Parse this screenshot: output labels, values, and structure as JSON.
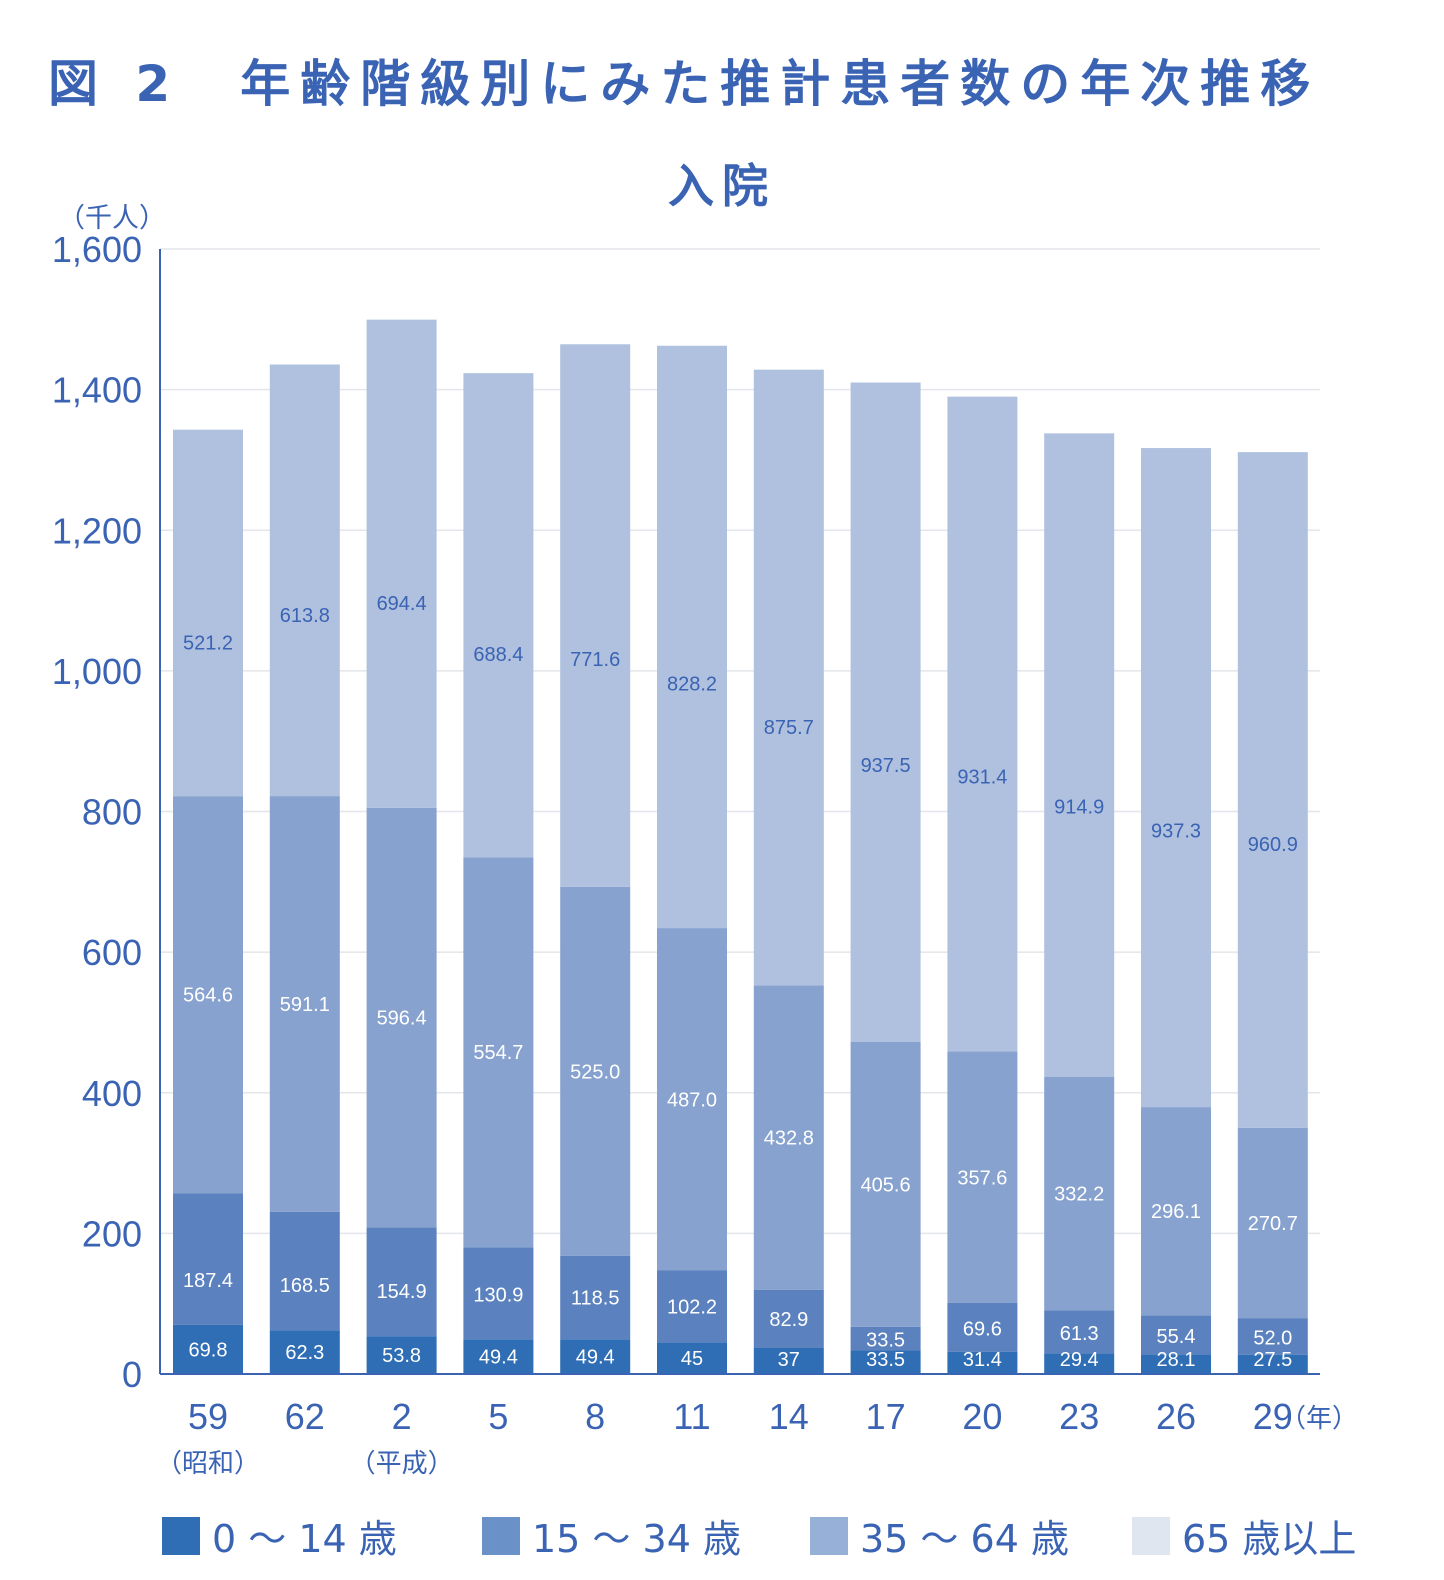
{
  "header": {
    "figure_number": "図 2",
    "title": "年齢階級別にみた推計患者数の年次推移",
    "subtitle": "入院"
  },
  "chart_data": {
    "type": "bar",
    "stacked": true,
    "title": "年齢階級別にみた推計患者数の年次推移",
    "subtitle": "入院",
    "ylabel": "（千人）",
    "xlabel": "（年）",
    "ylim": [
      0,
      1600
    ],
    "yticks": [
      0,
      200,
      400,
      600,
      800,
      1000,
      1200,
      1400,
      1600
    ],
    "ytick_labels": [
      "0",
      "200",
      "400",
      "600",
      "800",
      "1,000",
      "1,200",
      "1,400",
      "1,600"
    ],
    "categories": [
      "59",
      "62",
      "2",
      "5",
      "8",
      "11",
      "14",
      "17",
      "20",
      "23",
      "26",
      "29"
    ],
    "era_labels": [
      {
        "category_index": 0,
        "label": "（昭和）"
      },
      {
        "category_index": 2,
        "label": "（平成）"
      }
    ],
    "grid": true,
    "legend_position": "bottom",
    "series": [
      {
        "name": "0 ～ 14 歳",
        "color": "#2f6db5",
        "values": [
          69.8,
          62.3,
          53.8,
          49.4,
          49.4,
          45,
          37,
          33.5,
          31.4,
          29.4,
          28.1,
          27.5
        ],
        "labels": [
          "69.8",
          "62.3",
          "53.8",
          "49.4",
          "49.4",
          "45",
          "37",
          "33.5",
          "31.4",
          "29.4",
          "28.1",
          "27.5"
        ]
      },
      {
        "name": "15 ～ 34 歳",
        "color": "#5b82bf",
        "values": [
          187.4,
          168.5,
          154.9,
          130.9,
          118.5,
          102.2,
          82.9,
          33.5,
          69.6,
          61.3,
          55.4,
          52.0
        ],
        "labels": [
          "187.4",
          "168.5",
          "154.9",
          "130.9",
          "118.5",
          "102.2",
          "82.9",
          "33.5",
          "69.6",
          "61.3",
          "55.4",
          "52.0"
        ]
      },
      {
        "name": "35 ～ 64 歳",
        "color": "#87a2cf",
        "values": [
          564.6,
          591.1,
          596.4,
          554.7,
          525.0,
          487.0,
          432.8,
          405.6,
          357.6,
          332.2,
          296.1,
          270.7
        ],
        "labels": [
          "564.6",
          "591.1",
          "596.4",
          "554.7",
          "525.0",
          "487.0",
          "432.8",
          "405.6",
          "357.6",
          "332.2",
          "296.1",
          "270.7"
        ]
      },
      {
        "name": "65 歳以上",
        "color": "#afc1df",
        "values": [
          521.2,
          613.8,
          694.4,
          688.4,
          771.6,
          828.2,
          875.7,
          937.5,
          931.4,
          914.9,
          937.3,
          960.9
        ],
        "labels": [
          "521.2",
          "613.8",
          "694.4",
          "688.4",
          "771.6",
          "828.2",
          "875.7",
          "937.5",
          "931.4",
          "914.9",
          "937.3",
          "960.9"
        ]
      }
    ],
    "legend": [
      {
        "label": "0 ～ 14 歳",
        "color": "#2f6db5"
      },
      {
        "label": "15 ～ 34 歳",
        "color": "#6a91c8"
      },
      {
        "label": "35 ～ 64 歳",
        "color": "#97b0d8"
      },
      {
        "label": "65 歳以上",
        "color": "#dfe6f0"
      }
    ]
  }
}
